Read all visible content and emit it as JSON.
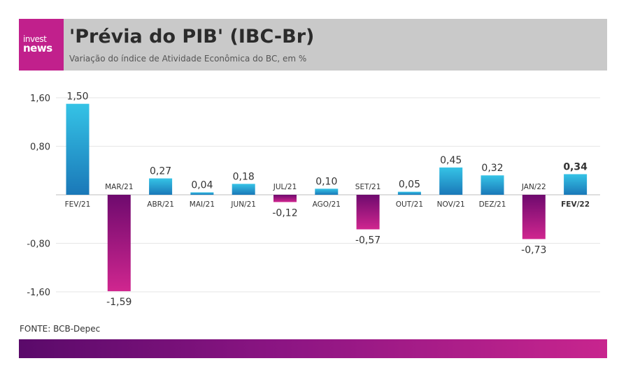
{
  "header": {
    "logo_line1": "invest",
    "logo_line2": "news",
    "title": "'Prévia do PIB' (IBC-Br)",
    "subtitle": "Variação do índice de Atividade Econômica do BC, em %"
  },
  "source": "FONTE: BCB-Depec",
  "colors": {
    "positive_top": "#35c3e6",
    "positive_bottom": "#1a78b8",
    "negative_top": "#6e0a6e",
    "negative_bottom": "#d0268f",
    "grid": "#e6e6e6",
    "header_bg": "#c9c9c9",
    "brand": "#c1208c"
  },
  "chart_data": {
    "type": "bar",
    "categories": [
      "FEV/21",
      "MAR/21",
      "ABR/21",
      "MAI/21",
      "JUN/21",
      "JUL/21",
      "AGO/21",
      "SET/21",
      "OUT/21",
      "NOV/21",
      "DEZ/21",
      "JAN/22",
      "FEV/22"
    ],
    "values": [
      1.5,
      -1.59,
      0.27,
      0.04,
      0.18,
      -0.12,
      0.1,
      -0.57,
      0.05,
      0.45,
      0.32,
      -0.73,
      0.34
    ],
    "value_labels": [
      "1,50",
      "-1,59",
      "0,27",
      "0,04",
      "0,18",
      "-0,12",
      "0,10",
      "-0,57",
      "0,05",
      "0,45",
      "0,32",
      "-0,73",
      "0,34"
    ],
    "yticks": [
      1.6,
      0.8,
      -0.8,
      -1.6
    ],
    "ytick_labels": [
      "1,60",
      "0,80",
      "-0,80",
      "-1,60"
    ],
    "ylim": [
      -1.6,
      1.6
    ],
    "highlight_last": true,
    "grid": true,
    "title": "",
    "xlabel": "",
    "ylabel": ""
  }
}
